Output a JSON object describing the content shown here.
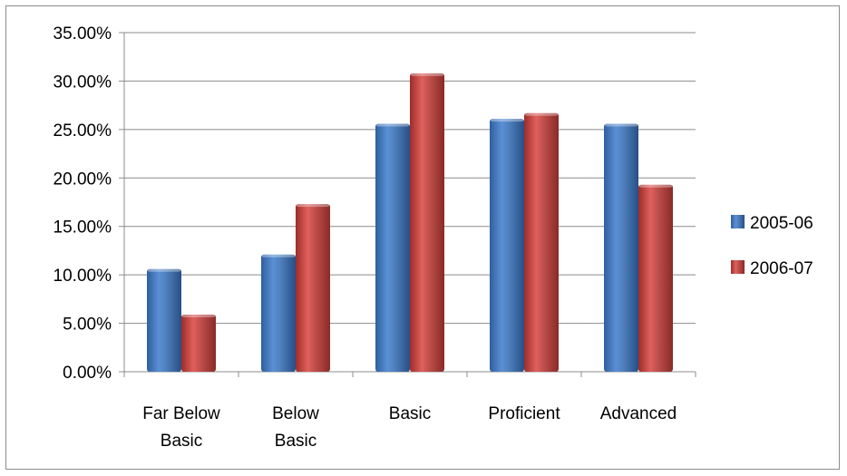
{
  "chart_data": {
    "type": "bar",
    "categories": [
      [
        "Far Below",
        "Basic"
      ],
      [
        "Below",
        "Basic"
      ],
      [
        "Basic"
      ],
      [
        "Proficient"
      ],
      [
        "Advanced"
      ]
    ],
    "series": [
      {
        "name": "2005-06",
        "values": [
          0.106,
          0.121,
          0.256,
          0.261,
          0.256
        ],
        "color": "#4f81bd"
      },
      {
        "name": "2006-07",
        "values": [
          0.059,
          0.173,
          0.308,
          0.267,
          0.193
        ],
        "color": "#c0504d"
      }
    ],
    "ylim": [
      0,
      0.35
    ],
    "yticks": [
      0,
      0.05,
      0.1,
      0.15,
      0.2,
      0.25,
      0.3,
      0.35
    ],
    "ytick_labels": [
      "0.00%",
      "5.00%",
      "10.00%",
      "15.00%",
      "20.00%",
      "25.00%",
      "30.00%",
      "35.00%"
    ],
    "grid": true,
    "legend_position": "right"
  }
}
